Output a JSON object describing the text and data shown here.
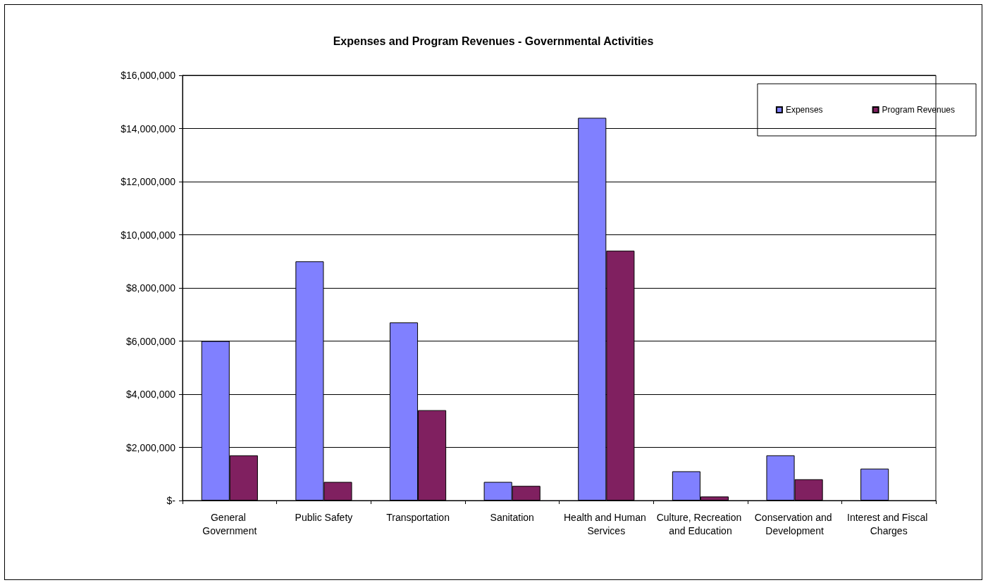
{
  "chart_data": {
    "type": "bar",
    "title": "Expenses and Program Revenues - Governmental Activities",
    "categories": [
      "General Government",
      "Public Safety",
      "Transportation",
      "Sanitation",
      "Health and Human Services",
      "Culture, Recreation and Education",
      "Conservation and Development",
      "Interest and Fiscal Charges"
    ],
    "series": [
      {
        "name": "Expenses",
        "color": "#8080ff",
        "values": [
          6000000,
          9000000,
          6700000,
          700000,
          14400000,
          1100000,
          1700000,
          1200000
        ]
      },
      {
        "name": "Program Revenues",
        "color": "#802060",
        "values": [
          1700000,
          700000,
          3400000,
          550000,
          9400000,
          150000,
          800000,
          null
        ]
      }
    ],
    "ylim": [
      0,
      16000000
    ],
    "yticks": [
      {
        "value": 0,
        "label": "$-"
      },
      {
        "value": 2000000,
        "label": "$2,000,000"
      },
      {
        "value": 4000000,
        "label": "$4,000,000"
      },
      {
        "value": 6000000,
        "label": "$6,000,000"
      },
      {
        "value": 8000000,
        "label": "$8,000,000"
      },
      {
        "value": 10000000,
        "label": "$10,000,000"
      },
      {
        "value": 12000000,
        "label": "$12,000,000"
      },
      {
        "value": 14000000,
        "label": "$14,000,000"
      },
      {
        "value": 16000000,
        "label": "$16,000,000"
      }
    ],
    "grid": "y",
    "legend": "top right"
  }
}
